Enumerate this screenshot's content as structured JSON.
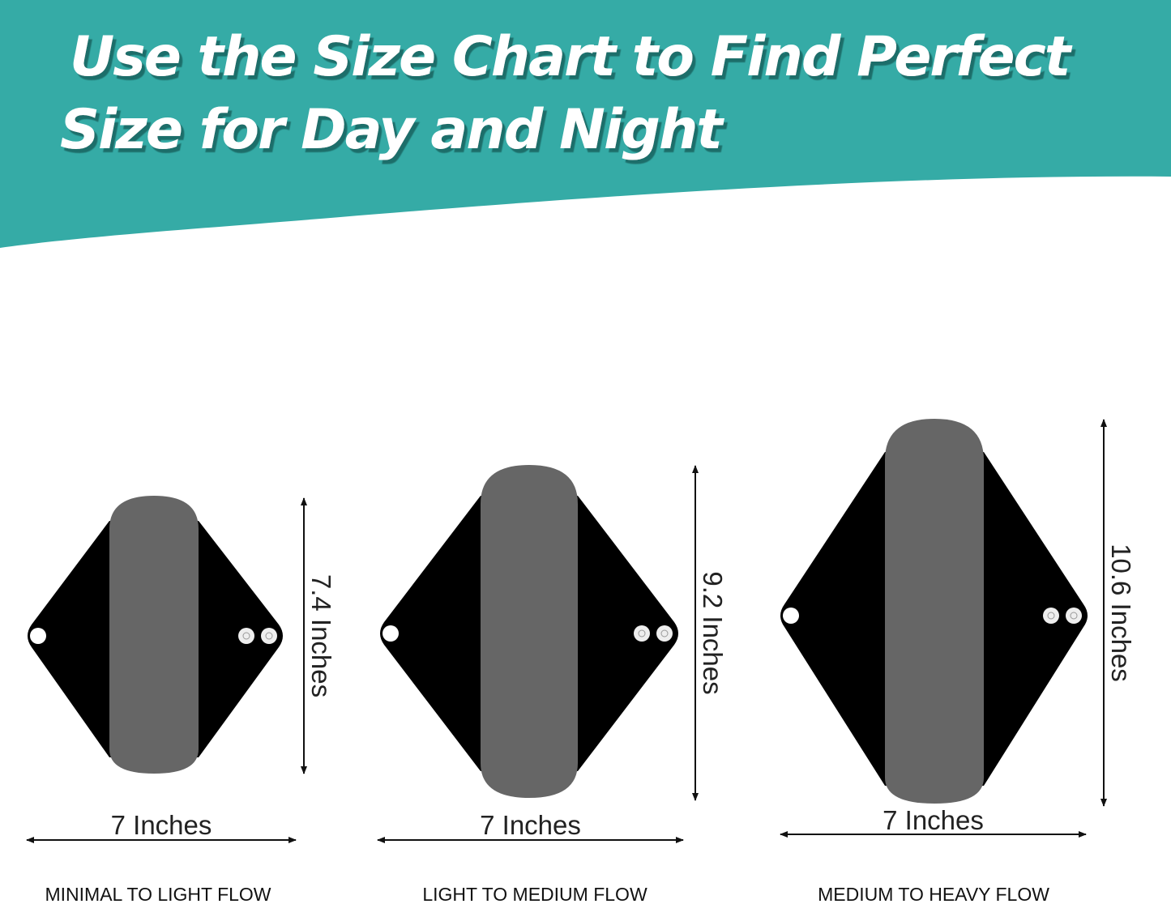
{
  "header": {
    "title_line1": "Use the Size Chart to Find Perfect",
    "title_line2": "Size for Day and Night",
    "background_color": "#35aba6"
  },
  "pads": [
    {
      "height_label": "7.4 Inches",
      "width_label": "7 Inches",
      "flow_label": "MINIMAL TO LIGHT FLOW"
    },
    {
      "height_label": "9.2 Inches",
      "width_label": "7 Inches",
      "flow_label": "LIGHT TO MEDIUM FLOW"
    },
    {
      "height_label": "10.6 Inches",
      "width_label": "7 Inches",
      "flow_label": "MEDIUM TO HEAVY FLOW"
    }
  ],
  "colors": {
    "pad_body": "#000000",
    "pad_center": "#666666"
  }
}
